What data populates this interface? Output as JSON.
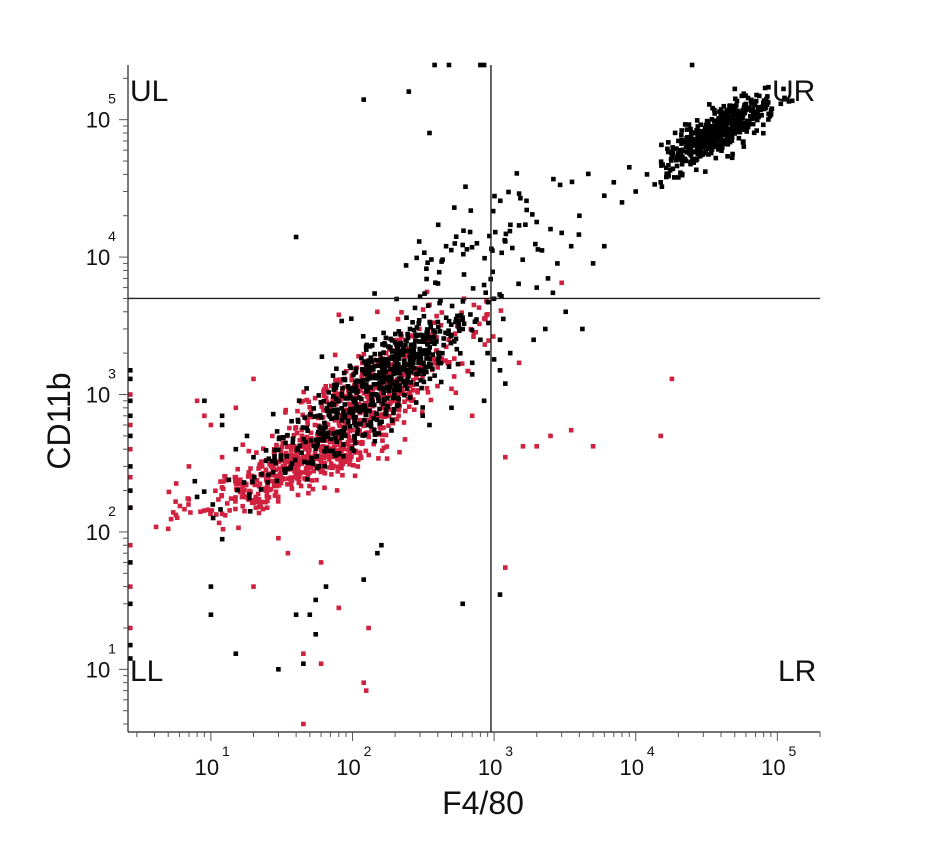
{
  "chart_data": {
    "type": "scatter",
    "title": "",
    "xlabel": "F4/80",
    "ylabel": "CD11b",
    "xscale": "log",
    "yscale": "log",
    "xlim": [
      2.6,
      200000
    ],
    "ylim": [
      3.5,
      250000
    ],
    "xticks": [
      {
        "base": "10",
        "exp": "1"
      },
      {
        "base": "10",
        "exp": "2"
      },
      {
        "base": "10",
        "exp": "3"
      },
      {
        "base": "10",
        "exp": "4"
      },
      {
        "base": "10",
        "exp": "5"
      }
    ],
    "yticks": [
      {
        "base": "10",
        "exp": "1"
      },
      {
        "base": "10",
        "exp": "2"
      },
      {
        "base": "10",
        "exp": "3"
      },
      {
        "base": "10",
        "exp": "4"
      },
      {
        "base": "10",
        "exp": "5"
      }
    ],
    "xtick_values": [
      10,
      100,
      1000,
      10000,
      100000
    ],
    "ytick_values": [
      10,
      100,
      1000,
      10000,
      100000
    ],
    "gate": {
      "x": 950,
      "y": 5000
    },
    "quadrant_labels": {
      "ul": "UL",
      "ur": "UR",
      "ll": "LL",
      "lr": "LR"
    },
    "grid": false,
    "colors": {
      "red_series": "#d0213f",
      "black_series": "#000000",
      "axis": "#222222",
      "gate": "#222222"
    },
    "series": [
      {
        "color": "#d0213f",
        "clusters": [
          {
            "center": [
              40,
              300
            ],
            "spread": [
              0.35,
              0.2
            ],
            "count": 420
          },
          {
            "center": [
              120,
              900
            ],
            "spread": [
              0.3,
              0.28
            ],
            "count": 380
          },
          {
            "center": [
              250,
              1600
            ],
            "spread": [
              0.35,
              0.3
            ],
            "count": 120
          }
        ],
        "points": [
          [
            2.7,
            1000
          ],
          [
            2.7,
            600
          ],
          [
            2.7,
            250
          ],
          [
            2.7,
            80
          ],
          [
            2.7,
            40
          ],
          [
            2.7,
            20
          ],
          [
            2.7,
            150
          ],
          [
            2.7,
            400
          ],
          [
            8,
            900
          ],
          [
            9,
            700
          ],
          [
            7,
            300
          ],
          [
            12,
            350
          ],
          [
            15,
            250
          ],
          [
            20,
            170
          ],
          [
            25,
            150
          ],
          [
            35,
            70
          ],
          [
            60,
            60
          ],
          [
            80,
            28
          ],
          [
            130,
            20
          ],
          [
            45,
            13
          ],
          [
            60,
            11
          ],
          [
            120,
            8
          ],
          [
            125,
            7
          ],
          [
            45,
            4
          ],
          [
            30,
            90
          ],
          [
            20,
            40
          ],
          [
            700,
            700
          ],
          [
            1200,
            350
          ],
          [
            1600,
            420
          ],
          [
            2000,
            420
          ],
          [
            2500,
            500
          ],
          [
            3500,
            550
          ],
          [
            5000,
            420
          ],
          [
            15000,
            500
          ],
          [
            18000,
            1300
          ],
          [
            1200,
            55
          ],
          [
            1500,
            1700
          ],
          [
            500,
            1100
          ],
          [
            3000,
            6500
          ],
          [
            600,
            3500
          ],
          [
            150,
            4000
          ],
          [
            80,
            3800
          ],
          [
            350,
            4500
          ],
          [
            20,
            1300
          ],
          [
            15,
            800
          ],
          [
            10,
            600
          ]
        ]
      },
      {
        "color": "#000000",
        "clusters": [
          {
            "center": [
              38000,
              80000
            ],
            "spread": [
              0.18,
              0.14
            ],
            "count": 520
          },
          {
            "center": [
              180,
              1400
            ],
            "spread": [
              0.3,
              0.28
            ],
            "count": 520
          },
          {
            "center": [
              50,
              400
            ],
            "spread": [
              0.3,
              0.2
            ],
            "count": 120
          },
          {
            "center": [
              700,
              12000
            ],
            "spread": [
              0.35,
              0.3
            ],
            "count": 70
          }
        ],
        "points": [
          [
            12000,
            40000
          ],
          [
            15000,
            35000
          ],
          [
            9000,
            45000
          ],
          [
            7000,
            35000
          ],
          [
            20000,
            38000
          ],
          [
            6000,
            28000
          ],
          [
            4000,
            20000
          ],
          [
            3000,
            15000
          ],
          [
            2500,
            16000
          ],
          [
            2000,
            18000
          ],
          [
            1700,
            22000
          ],
          [
            1500,
            17000
          ],
          [
            1200,
            13000
          ],
          [
            3500,
            12000
          ],
          [
            2800,
            9000
          ],
          [
            2400,
            7000
          ],
          [
            2000,
            6000
          ],
          [
            2600,
            5500
          ],
          [
            3200,
            4000
          ],
          [
            2300,
            3000
          ],
          [
            1900,
            2500
          ],
          [
            4200,
            3000
          ],
          [
            1300,
            2000
          ],
          [
            1100,
            1500
          ],
          [
            5000,
            9000
          ],
          [
            6000,
            12000
          ],
          [
            8000,
            25000
          ],
          [
            10000,
            30000
          ],
          [
            25000,
            250000
          ],
          [
            60000,
            130000
          ],
          [
            2.7,
            1500
          ],
          [
            2.7,
            1300
          ],
          [
            2.7,
            700
          ],
          [
            2.7,
            500
          ],
          [
            2.7,
            300
          ],
          [
            2.7,
            150
          ],
          [
            2.7,
            60
          ],
          [
            2.7,
            30
          ],
          [
            2.7,
            15
          ],
          [
            2.7,
            12
          ],
          [
            2.7,
            900
          ],
          [
            2.7,
            200
          ],
          [
            120,
            140000
          ],
          [
            250,
            160000
          ],
          [
            350,
            80000
          ],
          [
            380,
            250000
          ],
          [
            480,
            250000
          ],
          [
            800,
            250000
          ],
          [
            850,
            250000
          ],
          [
            40,
            14000
          ],
          [
            600,
            3000
          ],
          [
            800,
            2500
          ],
          [
            900,
            2000
          ],
          [
            1000,
            1800
          ],
          [
            700,
            1400
          ],
          [
            1100,
            2500
          ],
          [
            1200,
            1200
          ],
          [
            500,
            800
          ],
          [
            350,
            600
          ],
          [
            700,
            1700
          ],
          [
            850,
            900
          ],
          [
            30,
            10
          ],
          [
            40,
            25
          ],
          [
            45,
            11
          ],
          [
            50,
            25
          ],
          [
            55,
            32
          ],
          [
            65,
            40
          ],
          [
            600,
            30
          ],
          [
            1100,
            35
          ],
          [
            120,
            45
          ],
          [
            150,
            70
          ],
          [
            160,
            80
          ],
          [
            10,
            40
          ],
          [
            15,
            13
          ],
          [
            10,
            25
          ],
          [
            55,
            18
          ],
          [
            18,
            500
          ],
          [
            12,
            700
          ],
          [
            9,
            900
          ],
          [
            12,
            600
          ],
          [
            15,
            400
          ],
          [
            20,
            350
          ],
          [
            8,
            180
          ]
        ]
      }
    ]
  }
}
